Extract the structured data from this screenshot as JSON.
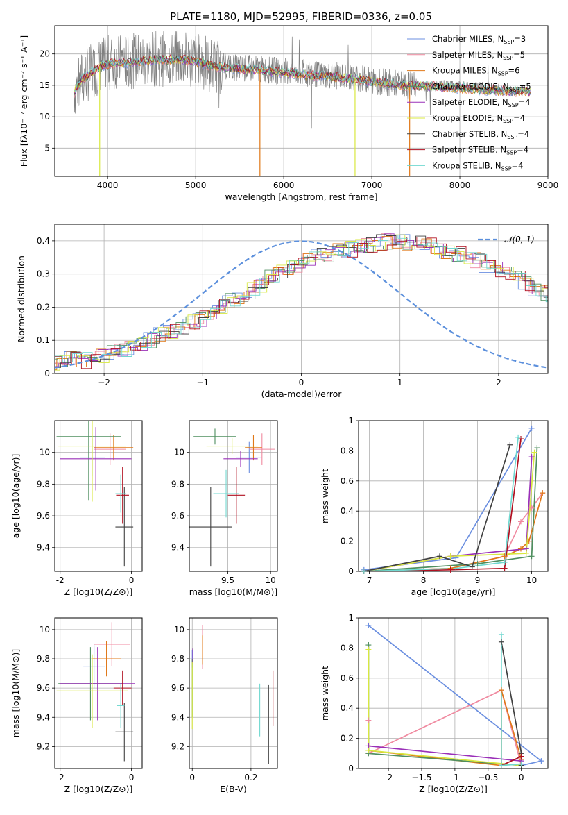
{
  "figure": {
    "title": "PLATE=1180, MJD=52995, FIBERID=0336, z=0.05",
    "colors": {
      "Chabrier MILES": "#6b8fe0",
      "Salpeter MILES": "#f08aa0",
      "Kroupa MILES": "#e07818",
      "Chabrier ELODIE": "#4f8f5f",
      "Salpeter ELODIE": "#9a30b8",
      "Kroupa ELODIE": "#d8e840",
      "Chabrier STELIB": "#404040",
      "Salpeter STELIB": "#b01020",
      "Kroupa STELIB": "#70d8d0",
      "data": "#808080",
      "normal": "#5b8fdc"
    }
  },
  "chart_data": [
    {
      "id": "spectrum",
      "type": "line",
      "xlabel": "wavelength [Angstrom, rest frame]",
      "ylabel": "Flux [fλ10⁻¹⁷ erg cm⁻² s⁻¹ A⁻¹]",
      "xlim": [
        3400,
        9000
      ],
      "ylim": [
        0.5,
        24.5
      ],
      "xticks": [
        4000,
        5000,
        6000,
        7000,
        8000,
        9000
      ],
      "yticks": [
        5,
        10,
        15,
        20
      ],
      "legend": {
        "placement": "top-right",
        "entries": [
          {
            "base": "Chabrier MILES",
            "nssp": "3"
          },
          {
            "base": "Salpeter MILES",
            "nssp": "5"
          },
          {
            "base": "Kroupa MILES",
            "nssp": "6"
          },
          {
            "base": "Chabrier ELODIE",
            "nssp": "5"
          },
          {
            "base": "Salpeter ELODIE",
            "nssp": "4"
          },
          {
            "base": "Kroupa ELODIE",
            "nssp": "4"
          },
          {
            "base": "Chabrier STELIB",
            "nssp": "4"
          },
          {
            "base": "Salpeter STELIB",
            "nssp": "4"
          },
          {
            "base": "Kroupa STELIB",
            "nssp": "4"
          }
        ]
      },
      "continuum": [
        [
          3620,
          14
        ],
        [
          3700,
          16
        ],
        [
          3800,
          17
        ],
        [
          3900,
          18
        ],
        [
          4000,
          18.6
        ],
        [
          4200,
          18.8
        ],
        [
          4500,
          19.2
        ],
        [
          4800,
          19.3
        ],
        [
          5000,
          19
        ],
        [
          5200,
          18.2
        ],
        [
          5500,
          17.8
        ],
        [
          5800,
          17.5
        ],
        [
          6000,
          17.2
        ],
        [
          6300,
          16.8
        ],
        [
          6600,
          16.5
        ],
        [
          6900,
          16
        ],
        [
          7200,
          15.4
        ],
        [
          7500,
          15.1
        ],
        [
          7800,
          14.9
        ],
        [
          8200,
          14.6
        ],
        [
          8500,
          14.3
        ],
        [
          8800,
          14.1
        ]
      ],
      "dips": [
        {
          "x": 3910,
          "y": 0.5,
          "series": "Kroupa ELODIE"
        },
        {
          "x": 5730,
          "y": 0.5,
          "series": "Kroupa MILES"
        },
        {
          "x": 6810,
          "y": 0.5,
          "series": "Kroupa ELODIE"
        },
        {
          "x": 7430,
          "y": 0.5,
          "series": "Kroupa MILES"
        }
      ]
    },
    {
      "id": "residuals",
      "type": "step",
      "xlabel": "(data-model)/error",
      "ylabel": "Normed distribution",
      "xlim": [
        -2.5,
        2.5
      ],
      "ylim": [
        0,
        0.45
      ],
      "xticks": [
        -2,
        -1,
        0,
        1,
        2
      ],
      "yticks": [
        0.0,
        0.1,
        0.2,
        0.3,
        0.4
      ],
      "grid": true,
      "legend": {
        "placement": "top-right",
        "entries": [
          "𝒩(0, 1)"
        ]
      },
      "bin_width": 0.1,
      "base_hist": [
        0.03,
        0.035,
        0.045,
        0.05,
        0.04,
        0.045,
        0.05,
        0.06,
        0.07,
        0.08,
        0.09,
        0.1,
        0.115,
        0.13,
        0.14,
        0.155,
        0.165,
        0.185,
        0.2,
        0.22,
        0.235,
        0.25,
        0.27,
        0.29,
        0.305,
        0.32,
        0.33,
        0.345,
        0.355,
        0.36,
        0.37,
        0.375,
        0.38,
        0.39,
        0.395,
        0.4,
        0.4,
        0.395,
        0.39,
        0.385,
        0.375,
        0.37,
        0.36,
        0.35,
        0.34,
        0.325,
        0.315,
        0.3,
        0.285,
        0.27,
        0.255,
        0.24,
        0.22,
        0.205,
        0.19,
        0.175,
        0.16,
        0.145,
        0.13,
        0.12,
        0.105,
        0.095,
        0.085,
        0.075,
        0.065,
        0.06,
        0.055,
        0.05,
        0.045,
        0.04,
        0.035,
        0.03,
        0.028,
        0.025
      ]
    },
    {
      "id": "age-vs-Z",
      "type": "errorbar",
      "xlabel": "Z [log10(Z/Z⊙)]",
      "ylabel": "age  [log10(age/yr)]",
      "xlim": [
        -2.15,
        0.3
      ],
      "ylim": [
        9.25,
        10.2
      ],
      "xticks": [
        -2,
        0
      ],
      "yticks": [
        9.4,
        9.6,
        9.8,
        10.0
      ],
      "points": [
        {
          "series": "Chabrier MILES",
          "x": -1.1,
          "y": 9.97,
          "xerr": 0.35,
          "yerr": 0.12
        },
        {
          "series": "Salpeter MILES",
          "x": -0.6,
          "y": 10.02,
          "xerr": 0.45,
          "yerr": 0.1
        },
        {
          "series": "Kroupa MILES",
          "x": -0.5,
          "y": 10.03,
          "xerr": 0.55,
          "yerr": 0.08
        },
        {
          "series": "Chabrier ELODIE",
          "x": -1.2,
          "y": 10.1,
          "xerr": 0.9,
          "yerr": 0.4
        },
        {
          "series": "Salpeter ELODIE",
          "x": -1.0,
          "y": 9.96,
          "xerr": 1.0,
          "yerr": 0.2
        },
        {
          "series": "Kroupa ELODIE",
          "x": -1.1,
          "y": 10.04,
          "xerr": 0.95,
          "yerr": 0.35
        },
        {
          "series": "Chabrier STELIB",
          "x": -0.2,
          "y": 9.53,
          "xerr": 0.25,
          "yerr": 0.25
        },
        {
          "series": "Salpeter STELIB",
          "x": -0.25,
          "y": 9.73,
          "xerr": 0.18,
          "yerr": 0.18
        },
        {
          "series": "Kroupa STELIB",
          "x": -0.3,
          "y": 9.74,
          "xerr": 0.15,
          "yerr": 0.12
        }
      ]
    },
    {
      "id": "age-vs-mass",
      "type": "errorbar",
      "xlabel": "mass [log10(M/M⊙)]",
      "ylabel": "",
      "xlim": [
        9.05,
        10.08
      ],
      "ylim": [
        9.25,
        10.2
      ],
      "xticks": [
        9.5,
        10.0
      ],
      "yticks": [
        9.4,
        9.6,
        9.8,
        10.0
      ],
      "points": [
        {
          "series": "Chabrier MILES",
          "x": 9.75,
          "y": 9.97,
          "xerr": 0.15,
          "yerr": 0.1
        },
        {
          "series": "Salpeter MILES",
          "x": 9.9,
          "y": 10.02,
          "xerr": 0.15,
          "yerr": 0.1
        },
        {
          "series": "Kroupa MILES",
          "x": 9.8,
          "y": 10.03,
          "xerr": 0.1,
          "yerr": 0.08
        },
        {
          "series": "Chabrier ELODIE",
          "x": 9.35,
          "y": 10.1,
          "xerr": 0.25,
          "yerr": 0.05
        },
        {
          "series": "Salpeter ELODIE",
          "x": 9.65,
          "y": 9.96,
          "xerr": 0.2,
          "yerr": 0.05
        },
        {
          "series": "Kroupa ELODIE",
          "x": 9.55,
          "y": 10.04,
          "xerr": 0.3,
          "yerr": 0.05
        },
        {
          "series": "Chabrier STELIB",
          "x": 9.3,
          "y": 9.53,
          "xerr": 0.25,
          "yerr": 0.25
        },
        {
          "series": "Salpeter STELIB",
          "x": 9.6,
          "y": 9.73,
          "xerr": 0.1,
          "yerr": 0.18
        },
        {
          "series": "Kroupa STELIB",
          "x": 9.48,
          "y": 9.74,
          "xerr": 0.15,
          "yerr": 0.15
        }
      ]
    },
    {
      "id": "weights-vs-age",
      "type": "line",
      "xlabel": "age  [log10(age/yr)]",
      "ylabel": "mass weight",
      "xlim": [
        6.8,
        10.3
      ],
      "ylim": [
        0,
        1
      ],
      "xticks": [
        7,
        8,
        9,
        10
      ],
      "yticks": [
        0.0,
        0.2,
        0.4,
        0.6,
        0.8,
        1.0
      ],
      "grid": true,
      "series": [
        {
          "name": "Chabrier MILES",
          "x": [
            6.9,
            8.6,
            10.0
          ],
          "y": [
            0.01,
            0.09,
            0.95
          ]
        },
        {
          "name": "Salpeter MILES",
          "x": [
            6.9,
            8.5,
            9.5,
            9.8,
            10.0,
            10.2
          ],
          "y": [
            0.0,
            0.02,
            0.1,
            0.33,
            0.42,
            0.52
          ]
        },
        {
          "name": "Kroupa MILES",
          "x": [
            6.9,
            8.5,
            9.5,
            9.8,
            9.95,
            10.2
          ],
          "y": [
            0.0,
            0.02,
            0.1,
            0.15,
            0.2,
            0.52
          ]
        },
        {
          "name": "Chabrier ELODIE",
          "x": [
            6.9,
            9.0,
            10.0,
            10.1
          ],
          "y": [
            0.0,
            0.05,
            0.1,
            0.82
          ]
        },
        {
          "name": "Salpeter ELODIE",
          "x": [
            6.9,
            8.5,
            9.9,
            10.0
          ],
          "y": [
            0.0,
            0.1,
            0.15,
            0.76
          ]
        },
        {
          "name": "Kroupa ELODIE",
          "x": [
            6.9,
            8.5,
            9.9,
            10.05
          ],
          "y": [
            0.0,
            0.1,
            0.12,
            0.79
          ]
        },
        {
          "name": "Chabrier STELIB",
          "x": [
            6.9,
            8.3,
            8.9,
            9.6
          ],
          "y": [
            0.0,
            0.1,
            0.03,
            0.84
          ]
        },
        {
          "name": "Salpeter STELIB",
          "x": [
            6.9,
            8.5,
            9.5,
            9.8
          ],
          "y": [
            0.0,
            0.01,
            0.02,
            0.88
          ]
        },
        {
          "name": "Kroupa STELIB",
          "x": [
            6.9,
            8.6,
            9.5,
            9.75
          ],
          "y": [
            0.0,
            0.02,
            0.06,
            0.89
          ]
        }
      ]
    },
    {
      "id": "mass-vs-Z",
      "type": "errorbar",
      "xlabel": "Z [log10(Z/Z⊙)]",
      "ylabel": "mass [log10(M/M⊙)]",
      "xlim": [
        -2.15,
        0.3
      ],
      "ylim": [
        9.05,
        10.08
      ],
      "xticks": [
        -2,
        0
      ],
      "yticks": [
        9.2,
        9.4,
        9.6,
        9.8,
        10.0
      ],
      "points": [
        {
          "series": "Chabrier MILES",
          "x": -1.05,
          "y": 9.75,
          "xerr": 0.3,
          "yerr": 0.15
        },
        {
          "series": "Salpeter MILES",
          "x": -0.55,
          "y": 9.9,
          "xerr": 0.5,
          "yerr": 0.15
        },
        {
          "series": "Kroupa MILES",
          "x": -0.7,
          "y": 9.8,
          "xerr": 0.4,
          "yerr": 0.12
        },
        {
          "series": "Chabrier ELODIE",
          "x": -1.15,
          "y": 9.63,
          "xerr": 0.9,
          "yerr": 0.25
        },
        {
          "series": "Salpeter ELODIE",
          "x": -0.95,
          "y": 9.63,
          "xerr": 1.05,
          "yerr": 0.25
        },
        {
          "series": "Kroupa ELODIE",
          "x": -1.1,
          "y": 9.58,
          "xerr": 1.0,
          "yerr": 0.25
        },
        {
          "series": "Chabrier STELIB",
          "x": -0.2,
          "y": 9.3,
          "xerr": 0.25,
          "yerr": 0.2
        },
        {
          "series": "Salpeter STELIB",
          "x": -0.25,
          "y": 9.6,
          "xerr": 0.25,
          "yerr": 0.12
        },
        {
          "series": "Kroupa STELIB",
          "x": -0.3,
          "y": 9.48,
          "xerr": 0.1,
          "yerr": 0.15
        }
      ]
    },
    {
      "id": "mass-vs-EBV",
      "type": "errorbar",
      "xlabel": "E(B-V)",
      "ylabel": "",
      "xlim": [
        -0.01,
        0.29
      ],
      "ylim": [
        9.05,
        10.08
      ],
      "xticks": [
        0.0,
        0.2
      ],
      "yticks": [
        9.2,
        9.4,
        9.6,
        9.8,
        10.0
      ],
      "points": [
        {
          "series": "Chabrier MILES",
          "x": 0.0,
          "y": 9.8,
          "xerr": 0,
          "yerr": 0.06
        },
        {
          "series": "Salpeter MILES",
          "x": 0.035,
          "y": 9.88,
          "xerr": 0,
          "yerr": 0.15
        },
        {
          "series": "Kroupa MILES",
          "x": 0.035,
          "y": 9.86,
          "xerr": 0,
          "yerr": 0.1
        },
        {
          "series": "Chabrier ELODIE",
          "x": 0.0,
          "y": 9.6,
          "xerr": 0,
          "yerr": 0.2
        },
        {
          "series": "Salpeter ELODIE",
          "x": 0.002,
          "y": 9.82,
          "xerr": 0,
          "yerr": 0.05
        },
        {
          "series": "Kroupa ELODIE",
          "x": 0.0,
          "y": 9.55,
          "xerr": 0,
          "yerr": 0.23
        },
        {
          "series": "Chabrier STELIB",
          "x": 0.26,
          "y": 9.35,
          "xerr": 0,
          "yerr": 0.27
        },
        {
          "series": "Salpeter STELIB",
          "x": 0.275,
          "y": 9.53,
          "xerr": 0,
          "yerr": 0.19
        },
        {
          "series": "Kroupa STELIB",
          "x": 0.23,
          "y": 9.45,
          "xerr": 0,
          "yerr": 0.18
        }
      ]
    },
    {
      "id": "weights-vs-Z",
      "type": "line",
      "xlabel": "Z [log10(Z/Z⊙)]",
      "ylabel": "mass weight",
      "xlim": [
        -2.45,
        0.4
      ],
      "ylim": [
        0,
        1
      ],
      "xticks": [
        -2.0,
        -1.5,
        -1.0,
        -0.5,
        0.0
      ],
      "yticks": [
        0.0,
        0.2,
        0.4,
        0.6,
        0.8,
        1.0
      ],
      "grid": true,
      "series": [
        {
          "name": "Chabrier MILES",
          "x": [
            -2.3,
            0.3,
            0.0
          ],
          "y": [
            0.95,
            0.05,
            0.02
          ]
        },
        {
          "name": "Salpeter MILES",
          "x": [
            -2.3,
            -2.3,
            -0.3,
            0.0
          ],
          "y": [
            0.32,
            0.1,
            0.52,
            0.02
          ]
        },
        {
          "name": "Kroupa MILES",
          "x": [
            -2.3,
            -0.3,
            -0.3,
            0.0
          ],
          "y": [
            0.12,
            0.02,
            0.52,
            0.06
          ]
        },
        {
          "name": "Chabrier ELODIE",
          "x": [
            -2.3,
            -2.3,
            0.0
          ],
          "y": [
            0.82,
            0.1,
            0.02
          ]
        },
        {
          "name": "Salpeter ELODIE",
          "x": [
            -2.3,
            0.0
          ],
          "y": [
            0.15,
            0.05
          ]
        },
        {
          "name": "Kroupa ELODIE",
          "x": [
            -2.3,
            -2.3,
            0.0
          ],
          "y": [
            0.79,
            0.12,
            0.02
          ]
        },
        {
          "name": "Chabrier STELIB",
          "x": [
            -0.3,
            0.0,
            0.0
          ],
          "y": [
            0.84,
            0.1,
            0.02
          ]
        },
        {
          "name": "Salpeter STELIB",
          "x": [
            -0.3,
            0.0
          ],
          "y": [
            0.02,
            0.08
          ]
        },
        {
          "name": "Kroupa STELIB",
          "x": [
            -0.3,
            -0.3,
            0.0
          ],
          "y": [
            0.89,
            0.02,
            0.03
          ]
        }
      ]
    }
  ]
}
